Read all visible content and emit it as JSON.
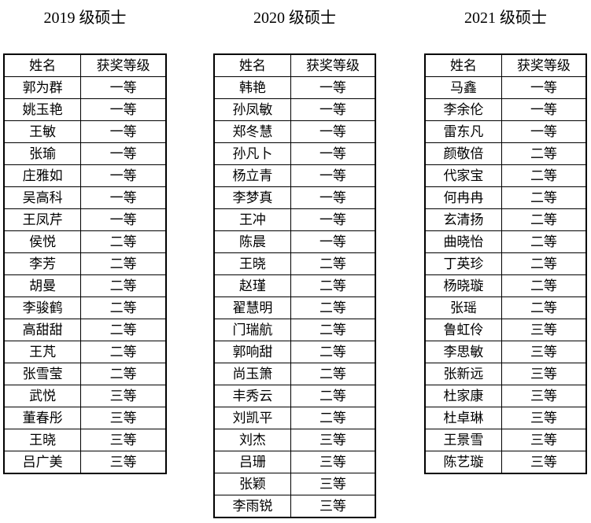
{
  "page": {
    "background": "#ffffff",
    "border_color": "#000000",
    "text_color": "#000000"
  },
  "columns": [
    {
      "title": "2019 级硕士",
      "headers": [
        "姓名",
        "获奖等级"
      ],
      "rows": [
        {
          "name": "郭为群",
          "award": "一等"
        },
        {
          "name": "姚玉艳",
          "award": "一等"
        },
        {
          "name": "王敏",
          "award": "一等"
        },
        {
          "name": "张瑜",
          "award": "一等"
        },
        {
          "name": "庄雅如",
          "award": "一等"
        },
        {
          "name": "吴高科",
          "award": "一等"
        },
        {
          "name": "王凤芹",
          "award": "一等"
        },
        {
          "name": "侯悦",
          "award": "二等"
        },
        {
          "name": "李芳",
          "award": "二等"
        },
        {
          "name": "胡曼",
          "award": "二等"
        },
        {
          "name": "李骏鹤",
          "award": "二等"
        },
        {
          "name": "高甜甜",
          "award": "二等"
        },
        {
          "name": "王芃",
          "award": "二等"
        },
        {
          "name": "张雪莹",
          "award": "二等"
        },
        {
          "name": "武悦",
          "award": "三等"
        },
        {
          "name": "董春彤",
          "award": "三等"
        },
        {
          "name": "王晓",
          "award": "三等"
        },
        {
          "name": "吕广美",
          "award": "三等"
        }
      ]
    },
    {
      "title": "2020 级硕士",
      "headers": [
        "姓名",
        "获奖等级"
      ],
      "rows": [
        {
          "name": "韩艳",
          "award": "一等"
        },
        {
          "name": "孙凤敏",
          "award": "一等"
        },
        {
          "name": "郑冬慧",
          "award": "一等"
        },
        {
          "name": "孙凡卜",
          "award": "一等"
        },
        {
          "name": "杨立青",
          "award": "一等"
        },
        {
          "name": "李梦真",
          "award": "一等"
        },
        {
          "name": "王冲",
          "award": "一等"
        },
        {
          "name": "陈晨",
          "award": "一等"
        },
        {
          "name": "王晓",
          "award": "二等"
        },
        {
          "name": "赵瑾",
          "award": "二等"
        },
        {
          "name": "翟慧明",
          "award": "二等"
        },
        {
          "name": "门瑞航",
          "award": "二等"
        },
        {
          "name": "郭响甜",
          "award": "二等"
        },
        {
          "name": "尚玉箫",
          "award": "二等"
        },
        {
          "name": "丰秀云",
          "award": "二等"
        },
        {
          "name": "刘凯平",
          "award": "二等"
        },
        {
          "name": "刘杰",
          "award": "三等"
        },
        {
          "name": "吕珊",
          "award": "三等"
        },
        {
          "name": "张颖",
          "award": "三等"
        },
        {
          "name": "李雨锐",
          "award": "三等"
        }
      ]
    },
    {
      "title": "2021 级硕士",
      "headers": [
        "姓名",
        "获奖等级"
      ],
      "rows": [
        {
          "name": "马鑫",
          "award": "一等"
        },
        {
          "name": "李余伦",
          "award": "一等"
        },
        {
          "name": "雷东凡",
          "award": "一等"
        },
        {
          "name": "颜敬倍",
          "award": "二等"
        },
        {
          "name": "代家宝",
          "award": "二等"
        },
        {
          "name": "何冉冉",
          "award": "二等"
        },
        {
          "name": "玄清扬",
          "award": "二等"
        },
        {
          "name": "曲晓怡",
          "award": "二等"
        },
        {
          "name": "丁英珍",
          "award": "二等"
        },
        {
          "name": "杨晓璇",
          "award": "二等"
        },
        {
          "name": "张瑶",
          "award": "二等"
        },
        {
          "name": "鲁虹伶",
          "award": "三等"
        },
        {
          "name": "李思敏",
          "award": "三等"
        },
        {
          "name": "张新远",
          "award": "三等"
        },
        {
          "name": "杜家康",
          "award": "三等"
        },
        {
          "name": "杜卓琳",
          "award": "三等"
        },
        {
          "name": "王景雪",
          "award": "三等"
        },
        {
          "name": "陈艺璇",
          "award": "三等"
        }
      ]
    }
  ]
}
